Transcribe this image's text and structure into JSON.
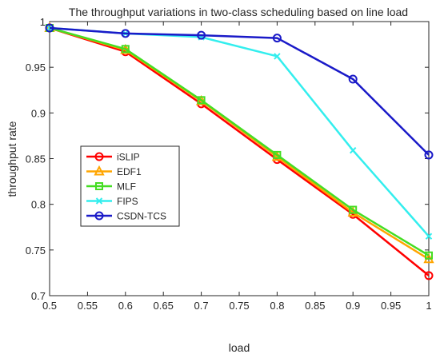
{
  "chart_data": {
    "type": "line",
    "title": "The throughput variations in two-class scheduling based on line load",
    "xlabel": "load",
    "ylabel": "throughput rate",
    "xlim": [
      0.5,
      1.0
    ],
    "ylim": [
      0.7,
      1.0
    ],
    "xticks": [
      "0.5",
      "0.55",
      "0.6",
      "0.65",
      "0.7",
      "0.75",
      "0.8",
      "0.85",
      "0.9",
      "0.95",
      "1"
    ],
    "yticks": [
      "0.7",
      "0.75",
      "0.8",
      "0.85",
      "0.9",
      "0.95",
      "1"
    ],
    "grid": false,
    "legend_position": "middle-left",
    "x": [
      0.5,
      0.6,
      0.7,
      0.8,
      0.9,
      1.0
    ],
    "series": [
      {
        "name": "iSLIP",
        "color": "#ff0000",
        "marker": "circle",
        "values": [
          0.993,
          0.967,
          0.91,
          0.849,
          0.789,
          0.722
        ]
      },
      {
        "name": "EDF1",
        "color": "#ffa500",
        "marker": "triangle",
        "values": [
          0.993,
          0.969,
          0.913,
          0.852,
          0.791,
          0.74
        ]
      },
      {
        "name": "MLF",
        "color": "#44dd22",
        "marker": "square",
        "values": [
          0.993,
          0.97,
          0.914,
          0.854,
          0.794,
          0.744
        ]
      },
      {
        "name": "FIPS",
        "color": "#33eeee",
        "marker": "x",
        "values": [
          0.993,
          0.987,
          0.983,
          0.962,
          0.859,
          0.765
        ]
      },
      {
        "name": "CSDN-TCS",
        "color": "#1a1ac8",
        "marker": "circle",
        "values": [
          0.993,
          0.987,
          0.985,
          0.982,
          0.937,
          0.854
        ]
      }
    ]
  }
}
